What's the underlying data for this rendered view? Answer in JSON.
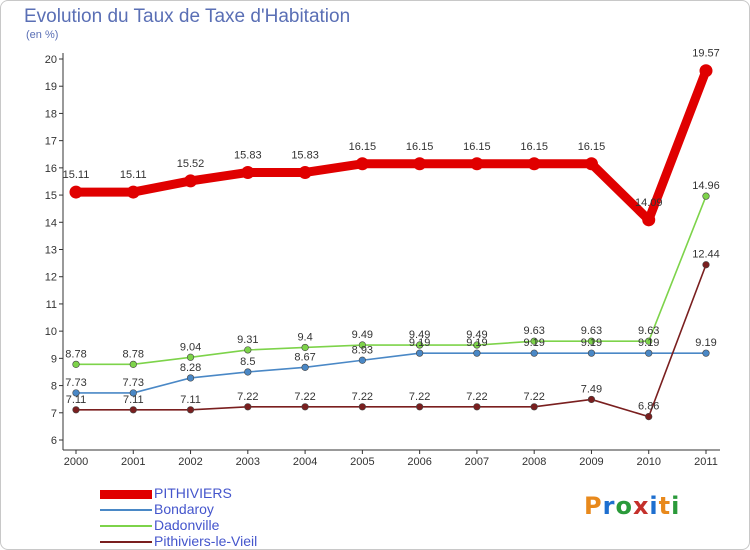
{
  "title": "Evolution du Taux de Taxe d'Habitation",
  "unit_label": "(en %)",
  "logo": {
    "text": "Proxiti",
    "colors": [
      "#e8891c",
      "#1e6fcf",
      "#2a9a3a",
      "#c4302b",
      "#1e6fcf",
      "#e8891c",
      "#2a9a3a"
    ]
  },
  "chart_data": {
    "type": "line",
    "x": [
      "2000",
      "2001",
      "2002",
      "2003",
      "2004",
      "2005",
      "2006",
      "2007",
      "2008",
      "2009",
      "2010",
      "2011"
    ],
    "ylim": [
      6,
      20
    ],
    "yticks": [
      6,
      7,
      8,
      9,
      10,
      11,
      12,
      13,
      14,
      15,
      16,
      17,
      18,
      19,
      20
    ],
    "grid": false,
    "legend_position": "bottom-left",
    "series": [
      {
        "name": "PITHIVIERS",
        "color": "#e00000",
        "emphasis": true,
        "values": [
          15.11,
          15.11,
          15.52,
          15.83,
          15.83,
          16.15,
          16.15,
          16.15,
          16.15,
          16.15,
          14.09,
          19.57
        ],
        "labels": [
          "15.11",
          "15.11",
          "15.52",
          "15.83",
          "15.83",
          "16.15",
          "16.15",
          "16.15",
          "16.15",
          "16.15",
          "14.09",
          "19.57"
        ]
      },
      {
        "name": "Bondaroy",
        "color": "#4a88c6",
        "emphasis": false,
        "values": [
          7.73,
          7.73,
          8.28,
          8.5,
          8.67,
          8.93,
          9.19,
          9.19,
          9.19,
          9.19,
          9.19,
          9.19
        ],
        "labels": [
          "7.73",
          "7.73",
          "8.28",
          "8.5",
          "8.67",
          "8.93",
          "9.19",
          "9.19",
          "9.19",
          "9.19",
          "9.19",
          "9.19"
        ]
      },
      {
        "name": "Dadonville",
        "color": "#7dd34a",
        "emphasis": false,
        "values": [
          8.78,
          8.78,
          9.04,
          9.31,
          9.4,
          9.49,
          9.49,
          9.49,
          9.63,
          9.63,
          9.63,
          14.96
        ],
        "labels": [
          "8.78",
          "8.78",
          "9.04",
          "9.31",
          "9.4",
          "9.49",
          "9.49",
          "9.49",
          "9.63",
          "9.63",
          "9.63",
          "14.96"
        ]
      },
      {
        "name": "Pithiviers-le-Vieil",
        "color": "#7a1f1f",
        "emphasis": false,
        "values": [
          7.11,
          7.11,
          7.11,
          7.22,
          7.22,
          7.22,
          7.22,
          7.22,
          7.22,
          7.49,
          6.86,
          12.44
        ],
        "labels": [
          "7.11",
          "7.11",
          "7.11",
          "7.22",
          "7.22",
          "7.22",
          "7.22",
          "7.22",
          "7.22",
          "7.49",
          "6.86",
          "12.44"
        ]
      }
    ]
  }
}
